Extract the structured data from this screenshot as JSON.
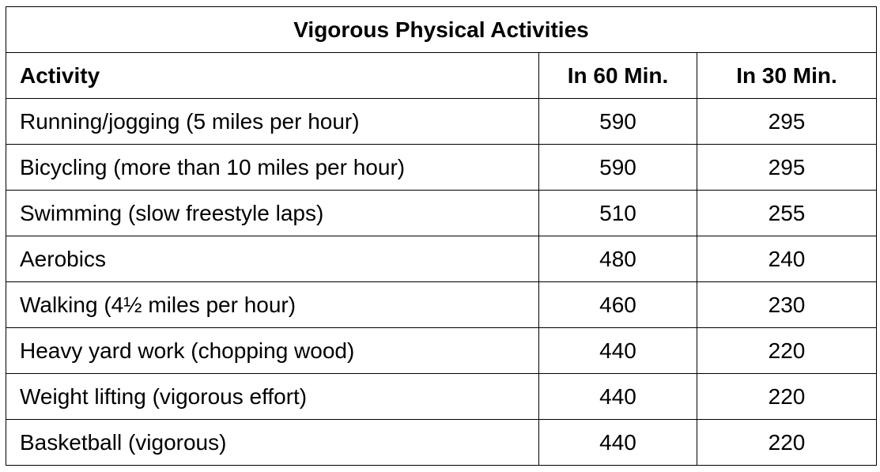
{
  "table": {
    "title": "Vigorous Physical Activities",
    "headers": {
      "activity": "Activity",
      "in_60": "In 60 Min.",
      "in_30": "In 30 Min."
    },
    "rows": [
      {
        "activity": "Running/jogging (5 miles per hour)",
        "in_60": "590",
        "in_30": "295"
      },
      {
        "activity": "Bicycling (more than 10 miles per hour)",
        "in_60": "590",
        "in_30": "295"
      },
      {
        "activity": "Swimming (slow freestyle laps)",
        "in_60": "510",
        "in_30": "255"
      },
      {
        "activity": "Aerobics",
        "in_60": "480",
        "in_30": "240"
      },
      {
        "activity": "Walking (4½ miles per hour)",
        "in_60": "460",
        "in_30": "230"
      },
      {
        "activity": "Heavy yard work (chopping wood)",
        "in_60": "440",
        "in_30": "220"
      },
      {
        "activity": "Weight lifting (vigorous effort)",
        "in_60": "440",
        "in_30": "220"
      },
      {
        "activity": "Basketball (vigorous)",
        "in_60": "440",
        "in_30": "220"
      }
    ]
  }
}
